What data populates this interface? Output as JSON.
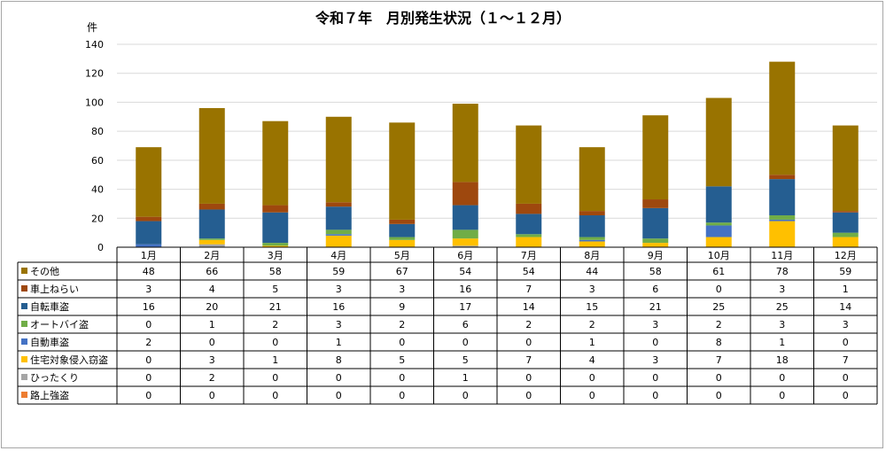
{
  "chart_data": {
    "type": "bar",
    "stacked": true,
    "title": "令和７年　月別発生状況（１～１２月）",
    "ylabel": "件",
    "ylim": [
      0,
      140
    ],
    "yticks": [
      0,
      20,
      40,
      60,
      80,
      100,
      120,
      140
    ],
    "grid": true,
    "legend_placement": "data-table-left",
    "categories": [
      "1月",
      "2月",
      "3月",
      "4月",
      "5月",
      "6月",
      "7月",
      "8月",
      "9月",
      "10月",
      "11月",
      "12月"
    ],
    "series": [
      {
        "name": "路上強盗",
        "color": "#ed7d31",
        "values": [
          0,
          0,
          0,
          0,
          0,
          0,
          0,
          0,
          0,
          0,
          0,
          0
        ]
      },
      {
        "name": "ひったくり",
        "color": "#a5a5a5",
        "values": [
          0,
          2,
          0,
          0,
          0,
          1,
          0,
          0,
          0,
          0,
          0,
          0
        ]
      },
      {
        "name": "住宅対象侵入窃盗",
        "color": "#ffc000",
        "values": [
          0,
          3,
          1,
          8,
          5,
          5,
          7,
          4,
          3,
          7,
          18,
          7
        ]
      },
      {
        "name": "自動車盗",
        "color": "#4472c4",
        "values": [
          2,
          0,
          0,
          1,
          0,
          0,
          0,
          1,
          0,
          8,
          1,
          0
        ]
      },
      {
        "name": "オートバイ盗",
        "color": "#70ad47",
        "values": [
          0,
          1,
          2,
          3,
          2,
          6,
          2,
          2,
          3,
          2,
          3,
          3
        ]
      },
      {
        "name": "自転車盗",
        "color": "#255e91",
        "values": [
          16,
          20,
          21,
          16,
          9,
          17,
          14,
          15,
          21,
          25,
          25,
          14
        ]
      },
      {
        "name": "車上ねらい",
        "color": "#9e480e",
        "values": [
          3,
          4,
          5,
          3,
          3,
          16,
          7,
          3,
          6,
          0,
          3,
          1
        ]
      },
      {
        "name": "その他",
        "color": "#997300",
        "values": [
          48,
          66,
          58,
          59,
          67,
          54,
          54,
          44,
          58,
          61,
          78,
          59
        ]
      }
    ],
    "table_row_order": [
      "その他",
      "車上ねらい",
      "自転車盗",
      "オートバイ盗",
      "自動車盗",
      "住宅対象侵入窃盗",
      "ひったくり",
      "路上強盗"
    ]
  }
}
